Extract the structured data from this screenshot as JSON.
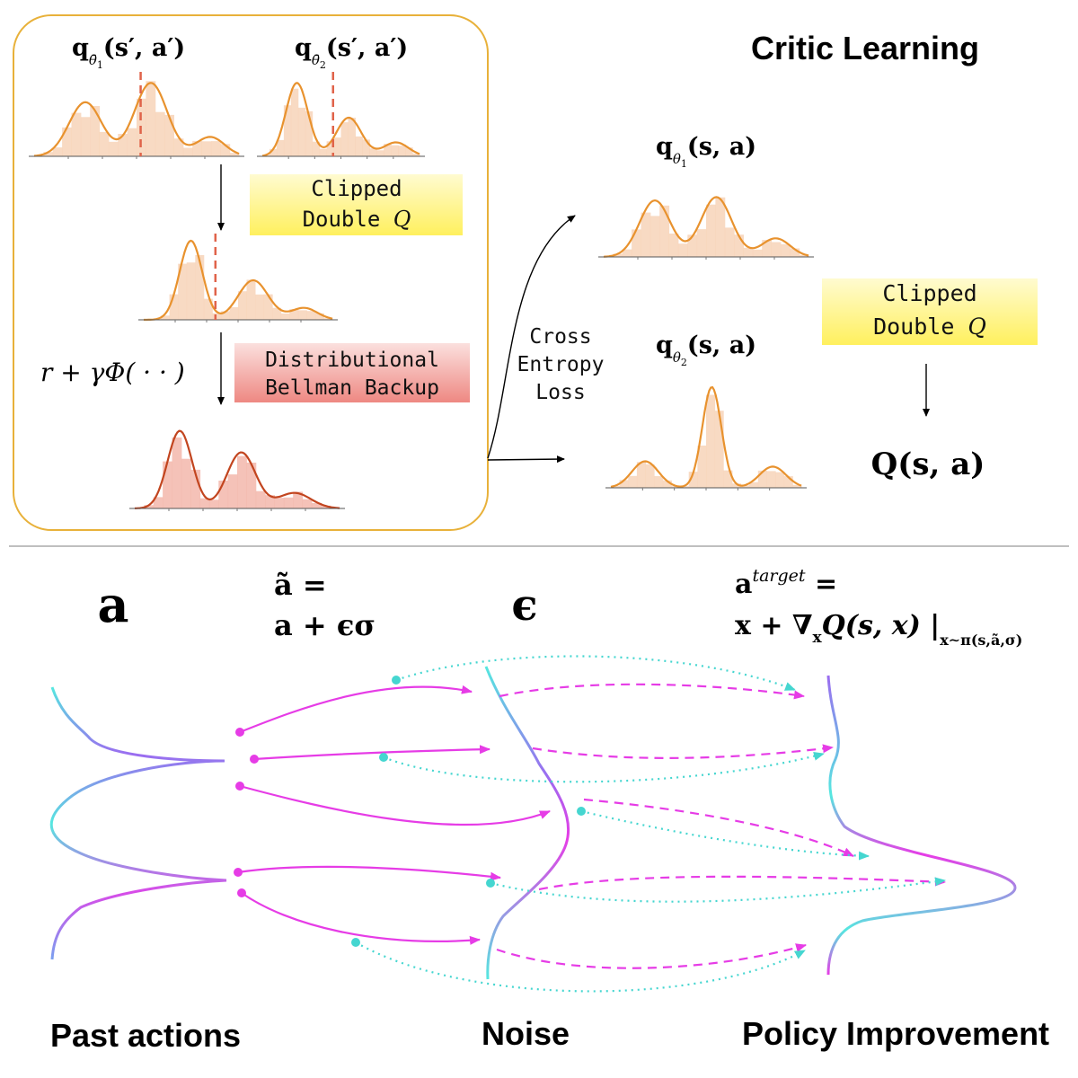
{
  "critic": {
    "title": "Critic Learning",
    "target_q1": {
      "base": "q",
      "sub": "θ̄",
      "subnum": "1",
      "args": "(s′, a′)"
    },
    "target_q2": {
      "base": "q",
      "sub": "θ̄",
      "subnum": "2",
      "args": "(s′, a′)"
    },
    "clipped_box_1": [
      "Clipped",
      "Double Q"
    ],
    "backup_formula": "r + γΦ( · · )",
    "distributional_box": [
      "Distributional",
      "Bellman Backup"
    ],
    "cross_entropy": [
      "Cross",
      "Entropy",
      "Loss"
    ],
    "q1": {
      "base": "q",
      "sub": "θ",
      "subnum": "1",
      "args": "(s, a)"
    },
    "q2": {
      "base": "q",
      "sub": "θ",
      "subnum": "2",
      "args": "(s, a)"
    },
    "clipped_box_2": [
      "Clipped",
      "Double Q"
    ],
    "q_output": "Q(s, a)",
    "colors": {
      "frame": "#e8b13a",
      "yellow": "#fff47a",
      "pink": "#f08a86",
      "dashed": "#e0634a",
      "curve": "#e8922e",
      "hist": "#f7d3b8"
    }
  },
  "policy": {
    "label_a": "a",
    "a_tilde_line1": "ã =",
    "a_tilde_line2": "a + ϵσ",
    "label_eps": "ϵ",
    "target_line1": "a",
    "target_sup": "target",
    "target_eq": " =",
    "target_line2": "x + ∇",
    "target_grad_sub": "x",
    "target_line2_rest": "Q(s, x) |",
    "target_eval_sub": "x∼π(s,ã,σ)",
    "caption_past": "Past actions",
    "caption_noise": "Noise",
    "caption_policy": "Policy Improvement",
    "colors": {
      "magenta": "#e63ce6",
      "cyan": "#45d6d0",
      "purple": "#9b6cf0"
    }
  }
}
